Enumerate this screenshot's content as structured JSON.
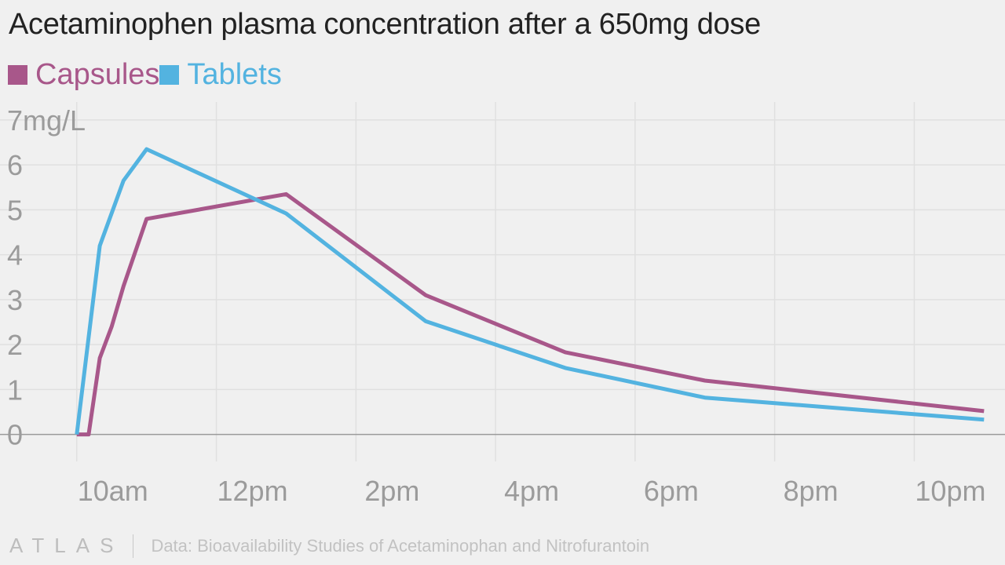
{
  "title": "Acetaminophen plasma concentration after a 650mg dose",
  "colors": {
    "background": "#f0f0f0",
    "capsules": "#a8578a",
    "tablets": "#53b3e0",
    "grid": "#e0e0e0",
    "tick_label": "#9b9b9b",
    "title": "#222222"
  },
  "legend": {
    "items": [
      {
        "label": "Capsules",
        "color": "#a8578a"
      },
      {
        "label": "Tablets",
        "color": "#53b3e0"
      }
    ]
  },
  "chart_data": {
    "type": "line",
    "title": "Acetaminophen plasma concentration after a 650mg dose",
    "xlabel": "",
    "ylabel": "",
    "y_unit": "mg/L",
    "x_domain_hours": [
      8.9,
      23.3
    ],
    "ylim": [
      -0.6,
      7.4
    ],
    "grid": true,
    "legend_position": "top-left",
    "x_ticks": [
      {
        "value": 10,
        "label": "10am"
      },
      {
        "value": 12,
        "label": "12pm"
      },
      {
        "value": 14,
        "label": "2pm"
      },
      {
        "value": 16,
        "label": "4pm"
      },
      {
        "value": 18,
        "label": "6pm"
      },
      {
        "value": 20,
        "label": "8pm"
      },
      {
        "value": 22,
        "label": "10pm"
      }
    ],
    "y_ticks": [
      {
        "value": 0,
        "label": "0"
      },
      {
        "value": 1,
        "label": "1"
      },
      {
        "value": 2,
        "label": "2"
      },
      {
        "value": 3,
        "label": "3"
      },
      {
        "value": 4,
        "label": "4"
      },
      {
        "value": 5,
        "label": "5"
      },
      {
        "value": 6,
        "label": "6"
      },
      {
        "value": 7,
        "label": "7mg/L"
      }
    ],
    "series": [
      {
        "name": "Capsules",
        "color": "#a8578a",
        "points": [
          {
            "x": 10.0,
            "y": 0.0
          },
          {
            "x": 10.17,
            "y": 0.0
          },
          {
            "x": 10.33,
            "y": 1.7
          },
          {
            "x": 10.5,
            "y": 2.4
          },
          {
            "x": 10.67,
            "y": 3.3
          },
          {
            "x": 11.0,
            "y": 4.8
          },
          {
            "x": 13.0,
            "y": 5.35
          },
          {
            "x": 15.0,
            "y": 3.1
          },
          {
            "x": 17.0,
            "y": 1.83
          },
          {
            "x": 19.0,
            "y": 1.2
          },
          {
            "x": 23.0,
            "y": 0.52
          }
        ]
      },
      {
        "name": "Tablets",
        "color": "#53b3e0",
        "points": [
          {
            "x": 10.0,
            "y": 0.0
          },
          {
            "x": 10.33,
            "y": 4.2
          },
          {
            "x": 10.67,
            "y": 5.65
          },
          {
            "x": 11.0,
            "y": 6.35
          },
          {
            "x": 13.0,
            "y": 4.92
          },
          {
            "x": 15.0,
            "y": 2.52
          },
          {
            "x": 17.0,
            "y": 1.48
          },
          {
            "x": 19.0,
            "y": 0.82
          },
          {
            "x": 23.0,
            "y": 0.33
          }
        ]
      }
    ]
  },
  "footer": {
    "logo": "ATLAS",
    "source": "Data: Bioavailability Studies of Acetaminophan and Nitrofurantoin"
  }
}
